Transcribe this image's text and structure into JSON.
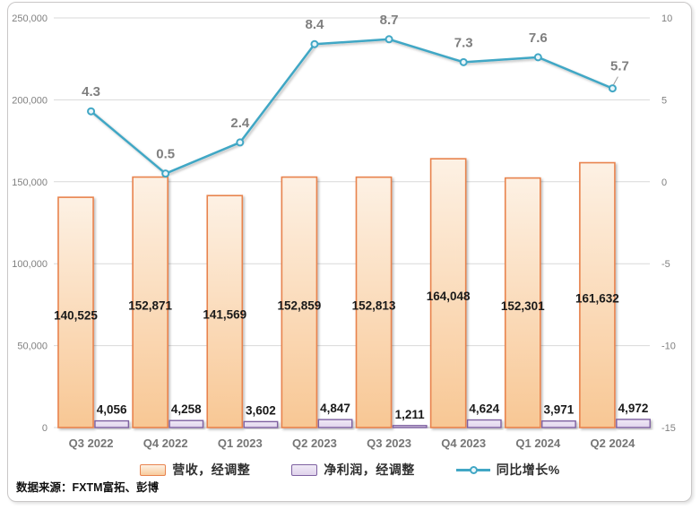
{
  "chart_data": {
    "type": "combo",
    "categories": [
      "Q3 2022",
      "Q4 2022",
      "Q1 2023",
      "Q2 2023",
      "Q3 2023",
      "Q4 2023",
      "Q1 2024",
      "Q2 2024"
    ],
    "series": [
      {
        "name": "营收，经调整",
        "type": "bar",
        "axis": "left",
        "values": [
          140525,
          152871,
          141569,
          152859,
          152813,
          164048,
          152301,
          161632
        ],
        "labels": [
          "140,525",
          "152,871",
          "141,569",
          "152,859",
          "152,813",
          "164,048",
          "152,301",
          "161,632"
        ],
        "border_color": "#e8834e",
        "fill_top": "#fdf1e4",
        "fill_bottom": "#f8c794"
      },
      {
        "name": "净利润，经调整",
        "type": "bar",
        "axis": "left",
        "values": [
          4056,
          4258,
          3602,
          4847,
          1211,
          4624,
          3971,
          4972
        ],
        "labels": [
          "4,056",
          "4,258",
          "3,602",
          "4,847",
          "1,211",
          "4,624",
          "3,971",
          "4,972"
        ],
        "border_color": "#7e61a1",
        "fill_top": "#f0eaf6",
        "fill_bottom": "#e0d3ec"
      },
      {
        "name": "同比增长%",
        "type": "line",
        "axis": "right",
        "values": [
          4.3,
          0.5,
          2.4,
          8.4,
          8.7,
          7.3,
          7.6,
          5.7
        ],
        "labels": [
          "4.3",
          "0.5",
          "2.4",
          "8.4",
          "8.7",
          "7.3",
          "7.6",
          "5.7"
        ],
        "color": "#41a7c5",
        "marker_fill": "#eaf6fa"
      }
    ],
    "left_axis": {
      "min": 0,
      "max": 250000,
      "step": 50000,
      "tick_values": [
        0,
        50000,
        100000,
        150000,
        200000,
        250000
      ],
      "tick_labels": [
        "0",
        "50,000",
        "100,000",
        "150,000",
        "200,000",
        "250,000"
      ]
    },
    "right_axis": {
      "min": -15,
      "max": 10,
      "step": 5,
      "tick_values": [
        -15,
        -10,
        -5,
        0,
        5,
        10
      ],
      "tick_labels": [
        "-15",
        "-10",
        "-5",
        "0",
        "5",
        "10"
      ]
    },
    "grid": true,
    "legend_position": "bottom",
    "colors": {
      "gridline": "#d9d9d9",
      "axis_text": "#808080",
      "x_label_text": "#757575",
      "bar_label_text": "#1a1a1a",
      "line_label_text": "#7f7f7f"
    }
  },
  "legend": {
    "items": [
      {
        "label": "营收，经调整",
        "swatch": "bar-orange"
      },
      {
        "label": "净利润，经调整",
        "swatch": "bar-purple"
      },
      {
        "label": "同比增长%",
        "swatch": "line-teal"
      }
    ]
  },
  "source_note": "数据来源：FXTM富拓、彭博"
}
